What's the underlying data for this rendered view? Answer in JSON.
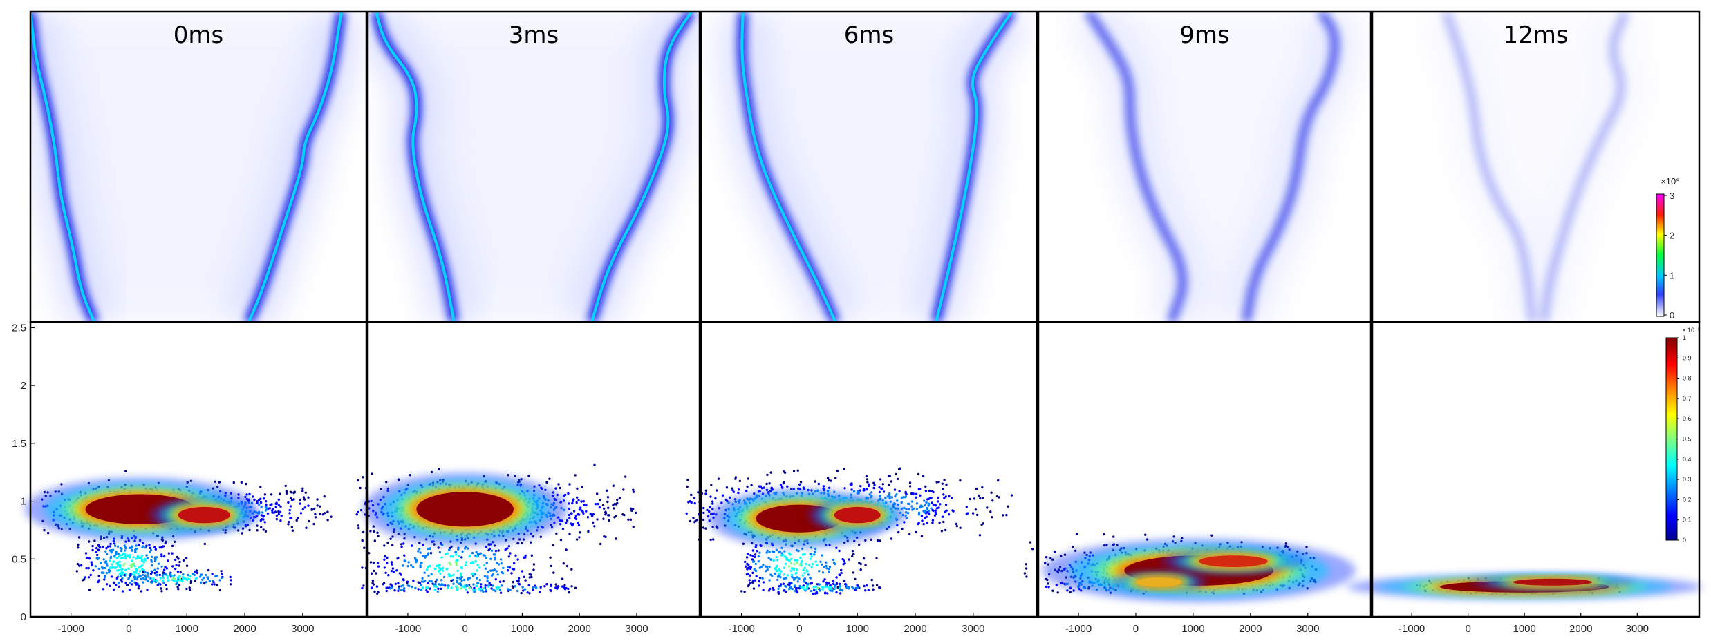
{
  "chart_data": [
    {
      "type": "heatmap",
      "row": "top",
      "panels": [
        {
          "time_label": "0ms",
          "left_front": [
            [
              -1.0,
              0.0
            ],
            [
              -0.97,
              0.15
            ],
            [
              -0.9,
              0.3
            ],
            [
              -0.85,
              0.45
            ],
            [
              -0.82,
              0.6
            ],
            [
              -0.75,
              0.75
            ],
            [
              -0.7,
              0.9
            ],
            [
              -0.62,
              1.0
            ]
          ],
          "right_front": [
            [
              0.85,
              0.0
            ],
            [
              0.8,
              0.18
            ],
            [
              0.72,
              0.32
            ],
            [
              0.63,
              0.42
            ],
            [
              0.62,
              0.5
            ],
            [
              0.5,
              0.7
            ],
            [
              0.38,
              0.9
            ],
            [
              0.3,
              1.0
            ]
          ],
          "intensity": 0.95
        },
        {
          "time_label": "3ms",
          "left_front": [
            [
              -0.95,
              0.0
            ],
            [
              -0.9,
              0.1
            ],
            [
              -0.72,
              0.22
            ],
            [
              -0.7,
              0.33
            ],
            [
              -0.74,
              0.42
            ],
            [
              -0.68,
              0.6
            ],
            [
              -0.55,
              0.8
            ],
            [
              -0.48,
              1.0
            ]
          ],
          "right_front": [
            [
              0.95,
              0.0
            ],
            [
              0.8,
              0.12
            ],
            [
              0.78,
              0.25
            ],
            [
              0.82,
              0.35
            ],
            [
              0.78,
              0.45
            ],
            [
              0.65,
              0.62
            ],
            [
              0.45,
              0.82
            ],
            [
              0.35,
              1.0
            ]
          ],
          "intensity": 0.95
        },
        {
          "time_label": "6ms",
          "left_front": [
            [
              -0.75,
              0.0
            ],
            [
              -0.76,
              0.15
            ],
            [
              -0.72,
              0.3
            ],
            [
              -0.68,
              0.42
            ],
            [
              -0.6,
              0.55
            ],
            [
              -0.45,
              0.72
            ],
            [
              -0.3,
              0.88
            ],
            [
              -0.2,
              1.0
            ]
          ],
          "right_front": [
            [
              0.85,
              0.0
            ],
            [
              0.7,
              0.12
            ],
            [
              0.6,
              0.22
            ],
            [
              0.65,
              0.3
            ],
            [
              0.62,
              0.45
            ],
            [
              0.55,
              0.65
            ],
            [
              0.48,
              0.82
            ],
            [
              0.4,
              1.0
            ]
          ],
          "intensity": 0.9
        },
        {
          "time_label": "9ms",
          "left_front": [
            [
              -0.7,
              0.0
            ],
            [
              -0.55,
              0.12
            ],
            [
              -0.45,
              0.22
            ],
            [
              -0.45,
              0.35
            ],
            [
              -0.4,
              0.5
            ],
            [
              -0.3,
              0.65
            ],
            [
              -0.1,
              0.85
            ],
            [
              -0.2,
              1.0
            ]
          ],
          "right_front": [
            [
              0.7,
              0.0
            ],
            [
              0.8,
              0.08
            ],
            [
              0.75,
              0.22
            ],
            [
              0.6,
              0.35
            ],
            [
              0.55,
              0.55
            ],
            [
              0.45,
              0.7
            ],
            [
              0.3,
              0.85
            ],
            [
              0.25,
              1.0
            ]
          ],
          "intensity": 0.6
        },
        {
          "time_label": "12ms",
          "left_front": [
            [
              -0.55,
              0.0
            ],
            [
              -0.45,
              0.15
            ],
            [
              -0.38,
              0.3
            ],
            [
              -0.35,
              0.45
            ],
            [
              -0.25,
              0.6
            ],
            [
              -0.1,
              0.72
            ],
            [
              -0.05,
              0.85
            ],
            [
              -0.02,
              1.0
            ]
          ],
          "right_front": [
            [
              0.55,
              0.0
            ],
            [
              0.45,
              0.12
            ],
            [
              0.55,
              0.25
            ],
            [
              0.4,
              0.4
            ],
            [
              0.25,
              0.58
            ],
            [
              0.15,
              0.75
            ],
            [
              0.08,
              0.88
            ],
            [
              0.05,
              1.0
            ]
          ],
          "intensity": 0.25
        }
      ],
      "colorbar": {
        "exponent_label": "×10⁹",
        "ticks": [
          "0",
          "1",
          "2",
          "3"
        ]
      }
    },
    {
      "type": "scatter",
      "row": "bottom",
      "xlim": [
        -1700,
        4100
      ],
      "ylim": [
        0,
        2.55
      ],
      "xticks": [
        -1000,
        0,
        1000,
        2000,
        3000
      ],
      "xtick_labels": [
        "-1000",
        "0",
        "1000",
        "2000",
        "3000"
      ],
      "yticks": [
        0,
        0.5,
        1,
        1.5,
        2,
        2.5
      ],
      "ytick_labels": [
        "0",
        "0.5",
        "1",
        "1.5",
        "2",
        "2.5"
      ],
      "panels": [
        {
          "clouds": [
            {
              "cx": 600,
              "cy": 0.93,
              "sx": 1500,
              "sy": 0.1,
              "n": 850,
              "xmin": -1500,
              "xmax": 3600,
              "ymin": 0.72,
              "ymax": 1.28
            },
            {
              "cx": 0,
              "cy": 0.45,
              "sx": 500,
              "sy": 0.15,
              "n": 380,
              "xmin": -900,
              "xmax": 1800,
              "ymin": 0.22,
              "ymax": 0.82
            },
            {
              "cx": 800,
              "cy": 0.33,
              "sx": 700,
              "sy": 0.04,
              "n": 160,
              "xmin": -900,
              "xmax": 1800,
              "ymin": 0.22,
              "ymax": 0.4
            }
          ],
          "cores": [
            {
              "cx": 200,
              "cy": 0.93,
              "rx": 950,
              "ry": 0.13,
              "color": "#8b0000"
            },
            {
              "cx": 1300,
              "cy": 0.88,
              "rx": 450,
              "ry": 0.07,
              "color": "#c01010"
            }
          ]
        },
        {
          "clouds": [
            {
              "cx": 200,
              "cy": 0.93,
              "sx": 1300,
              "sy": 0.14,
              "n": 850,
              "xmin": -1900,
              "xmax": 3000,
              "ymin": 0.3,
              "ymax": 1.35
            },
            {
              "cx": -200,
              "cy": 0.45,
              "sx": 800,
              "sy": 0.15,
              "n": 350,
              "xmin": -1900,
              "xmax": 2200,
              "ymin": 0.22,
              "ymax": 0.8
            },
            {
              "cx": 0,
              "cy": 0.25,
              "sx": 1100,
              "sy": 0.03,
              "n": 160,
              "xmin": -1800,
              "xmax": 2200,
              "ymin": 0.2,
              "ymax": 0.32
            }
          ],
          "cores": [
            {
              "cx": 0,
              "cy": 0.93,
              "rx": 850,
              "ry": 0.15,
              "color": "#8b0000"
            }
          ]
        },
        {
          "clouds": [
            {
              "cx": 500,
              "cy": 0.95,
              "sx": 1500,
              "sy": 0.12,
              "n": 850,
              "xmin": -1950,
              "xmax": 3700,
              "ymin": 0.6,
              "ymax": 1.32
            },
            {
              "cx": -100,
              "cy": 0.45,
              "sx": 600,
              "sy": 0.15,
              "n": 330,
              "xmin": -1000,
              "xmax": 1400,
              "ymin": 0.22,
              "ymax": 0.8
            },
            {
              "cx": 300,
              "cy": 0.25,
              "sx": 600,
              "sy": 0.03,
              "n": 120,
              "xmin": -1000,
              "xmax": 1400,
              "ymin": 0.2,
              "ymax": 0.32
            }
          ],
          "cores": [
            {
              "cx": 0,
              "cy": 0.85,
              "rx": 750,
              "ry": 0.12,
              "color": "#8b0000"
            },
            {
              "cx": 1000,
              "cy": 0.88,
              "rx": 400,
              "ry": 0.07,
              "color": "#c01010"
            }
          ]
        },
        {
          "clouds": [
            {
              "cx": 900,
              "cy": 0.43,
              "sx": 1300,
              "sy": 0.1,
              "n": 650,
              "xmin": -1950,
              "xmax": 3200,
              "ymin": 0.2,
              "ymax": 0.72
            },
            {
              "cx": 500,
              "cy": 0.27,
              "sx": 1500,
              "sy": 0.04,
              "n": 220,
              "xmin": -1950,
              "xmax": 3200,
              "ymin": 0.2,
              "ymax": 0.35
            }
          ],
          "cores": [
            {
              "cx": 1100,
              "cy": 0.4,
              "rx": 1300,
              "ry": 0.13,
              "color": "#8b0000"
            },
            {
              "cx": 1700,
              "cy": 0.48,
              "rx": 600,
              "ry": 0.05,
              "color": "#d42a10"
            },
            {
              "cx": 400,
              "cy": 0.3,
              "rx": 400,
              "ry": 0.04,
              "color": "#e8b020"
            }
          ]
        },
        {
          "clouds": [
            {
              "cx": 1000,
              "cy": 0.26,
              "sx": 900,
              "sy": 0.03,
              "n": 300,
              "xmin": -1000,
              "xmax": 2700,
              "ymin": 0.2,
              "ymax": 0.36
            }
          ],
          "cores": [
            {
              "cx": 1000,
              "cy": 0.26,
              "rx": 1500,
              "ry": 0.05,
              "color": "#8b0000"
            },
            {
              "cx": 1500,
              "cy": 0.3,
              "rx": 700,
              "ry": 0.03,
              "color": "#b01010"
            }
          ]
        }
      ],
      "colorbar": {
        "exponent_label": "× 10⁻³",
        "ticks": [
          "0",
          "0.1",
          "0.2",
          "0.3",
          "0.4",
          "0.5",
          "0.6",
          "0.7",
          "0.8",
          "0.9",
          "1"
        ]
      }
    }
  ],
  "colors": {
    "jet": [
      "#00008f",
      "#0000ff",
      "#0080ff",
      "#00ffff",
      "#80ff80",
      "#ffff00",
      "#ff8000",
      "#ff0000",
      "#800000"
    ],
    "top_colormap": [
      "#ffffff",
      "#0000ff",
      "#00ffff",
      "#00ff00",
      "#ffff00",
      "#ff0000",
      "#ff00ff"
    ],
    "front_blue": "#0a1ee6",
    "front_core": "#00e0ff",
    "dark_core": "#8b0000"
  }
}
